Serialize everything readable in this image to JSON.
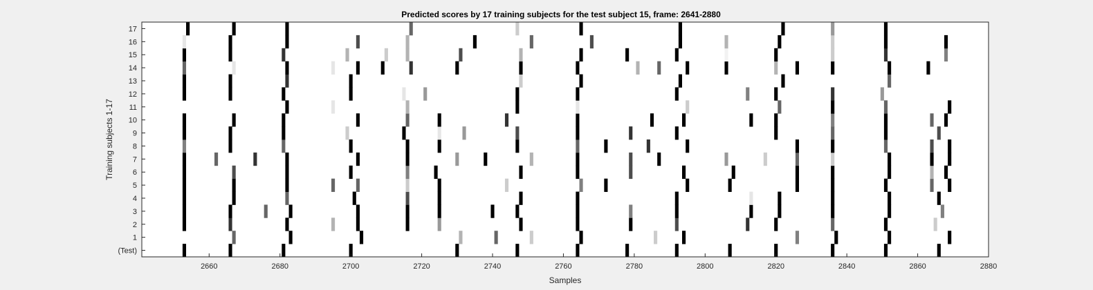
{
  "chart_data": {
    "type": "heatmap",
    "title": "Predicted scores by 17 training subjects for the test subject 15, frame: 2641-2880",
    "xlabel": "Samples",
    "ylabel": "Training subjects 1-17",
    "xlim": [
      2641,
      2880
    ],
    "xticks": [
      2660,
      2680,
      2700,
      2720,
      2740,
      2760,
      2780,
      2800,
      2820,
      2840,
      2860,
      2880
    ],
    "yticklabels": [
      "(Test)",
      "1",
      "2",
      "3",
      "4",
      "5",
      "6",
      "7",
      "8",
      "9",
      "10",
      "11",
      "12",
      "13",
      "14",
      "15",
      "16",
      "17"
    ],
    "grid": false,
    "colormap": "white-to-black",
    "rows": [
      {
        "row": "(Test)",
        "marks": [
          [
            2653,
            1
          ],
          [
            2666,
            1
          ],
          [
            2681,
            1
          ],
          [
            2700,
            1
          ],
          [
            2730,
            1
          ],
          [
            2747,
            1
          ],
          [
            2764,
            1
          ],
          [
            2778,
            1
          ],
          [
            2792,
            1
          ],
          [
            2807,
            1
          ],
          [
            2820,
            1
          ],
          [
            2836,
            1
          ],
          [
            2851,
            1
          ],
          [
            2866,
            1
          ]
        ]
      },
      {
        "row": "1",
        "marks": [
          [
            2667,
            0.6
          ],
          [
            2683,
            1
          ],
          [
            2703,
            1
          ],
          [
            2731,
            0.3
          ],
          [
            2741,
            0.6
          ],
          [
            2751,
            0.2
          ],
          [
            2765,
            1
          ],
          [
            2786,
            0.2
          ],
          [
            2794,
            1
          ],
          [
            2826,
            0.5
          ],
          [
            2837,
            1
          ],
          [
            2852,
            1
          ],
          [
            2869,
            1
          ]
        ]
      },
      {
        "row": "2",
        "marks": [
          [
            2653,
            1
          ],
          [
            2666,
            0.8
          ],
          [
            2682,
            1
          ],
          [
            2695,
            0.3
          ],
          [
            2702,
            1
          ],
          [
            2716,
            1
          ],
          [
            2725,
            0.4
          ],
          [
            2748,
            1
          ],
          [
            2764,
            1
          ],
          [
            2779,
            1
          ],
          [
            2792,
            0.7
          ],
          [
            2812,
            0.8
          ],
          [
            2820,
            1
          ],
          [
            2836,
            0.6
          ],
          [
            2851,
            1
          ],
          [
            2865,
            0.2
          ]
        ]
      },
      {
        "row": "3",
        "marks": [
          [
            2653,
            1
          ],
          [
            2666,
            1
          ],
          [
            2676,
            0.6
          ],
          [
            2683,
            1
          ],
          [
            2702,
            1
          ],
          [
            2716,
            1
          ],
          [
            2725,
            1
          ],
          [
            2740,
            1
          ],
          [
            2747,
            1
          ],
          [
            2764,
            1
          ],
          [
            2779,
            0.5
          ],
          [
            2792,
            1
          ],
          [
            2813,
            1
          ],
          [
            2821,
            1
          ],
          [
            2836,
            1
          ],
          [
            2852,
            1
          ],
          [
            2867,
            0.5
          ]
        ]
      },
      {
        "row": "4",
        "marks": [
          [
            2653,
            1
          ],
          [
            2667,
            1
          ],
          [
            2682,
            0.6
          ],
          [
            2701,
            1
          ],
          [
            2716,
            0.7
          ],
          [
            2725,
            1
          ],
          [
            2748,
            1
          ],
          [
            2764,
            1
          ],
          [
            2792,
            1
          ],
          [
            2813,
            0.1
          ],
          [
            2821,
            1
          ],
          [
            2836,
            1
          ],
          [
            2852,
            1
          ],
          [
            2866,
            1
          ]
        ]
      },
      {
        "row": "5",
        "marks": [
          [
            2653,
            1
          ],
          [
            2667,
            1
          ],
          [
            2682,
            1
          ],
          [
            2695,
            0.6
          ],
          [
            2702,
            0.6
          ],
          [
            2716,
            0.2
          ],
          [
            2725,
            1
          ],
          [
            2744,
            0.2
          ],
          [
            2765,
            0.5
          ],
          [
            2772,
            1
          ],
          [
            2795,
            1
          ],
          [
            2807,
            1
          ],
          [
            2826,
            1
          ],
          [
            2836,
            1
          ],
          [
            2851,
            1
          ],
          [
            2864,
            0.6
          ],
          [
            2869,
            1
          ]
        ]
      },
      {
        "row": "6",
        "marks": [
          [
            2653,
            1
          ],
          [
            2667,
            0.7
          ],
          [
            2682,
            1
          ],
          [
            2700,
            1
          ],
          [
            2716,
            0.5
          ],
          [
            2724,
            1
          ],
          [
            2748,
            1
          ],
          [
            2764,
            1
          ],
          [
            2779,
            0.7
          ],
          [
            2794,
            1
          ],
          [
            2808,
            1
          ],
          [
            2826,
            1
          ],
          [
            2836,
            1
          ],
          [
            2852,
            1
          ],
          [
            2864,
            0.3
          ],
          [
            2868,
            1
          ]
        ]
      },
      {
        "row": "7",
        "marks": [
          [
            2653,
            1
          ],
          [
            2662,
            0.6
          ],
          [
            2673,
            0.8
          ],
          [
            2682,
            1
          ],
          [
            2702,
            1
          ],
          [
            2716,
            1
          ],
          [
            2730,
            0.4
          ],
          [
            2738,
            1
          ],
          [
            2751,
            0.3
          ],
          [
            2764,
            1
          ],
          [
            2779,
            0.7
          ],
          [
            2787,
            1
          ],
          [
            2806,
            0.4
          ],
          [
            2817,
            0.2
          ],
          [
            2826,
            0.6
          ],
          [
            2836,
            0.2
          ],
          [
            2852,
            1
          ],
          [
            2864,
            1
          ],
          [
            2869,
            1
          ]
        ]
      },
      {
        "row": "8",
        "marks": [
          [
            2653,
            0.5
          ],
          [
            2666,
            1
          ],
          [
            2681,
            0.6
          ],
          [
            2700,
            1
          ],
          [
            2716,
            1
          ],
          [
            2725,
            1
          ],
          [
            2747,
            1
          ],
          [
            2764,
            0.6
          ],
          [
            2772,
            1
          ],
          [
            2784,
            0.8
          ],
          [
            2795,
            1
          ],
          [
            2826,
            1
          ],
          [
            2836,
            1
          ],
          [
            2851,
            0.6
          ],
          [
            2864,
            0.7
          ],
          [
            2869,
            1
          ]
        ]
      },
      {
        "row": "9",
        "marks": [
          [
            2653,
            1
          ],
          [
            2666,
            1
          ],
          [
            2681,
            1
          ],
          [
            2699,
            0.2
          ],
          [
            2715,
            1
          ],
          [
            2725,
            0.1
          ],
          [
            2732,
            0.4
          ],
          [
            2747,
            0.7
          ],
          [
            2764,
            1
          ],
          [
            2779,
            0.8
          ],
          [
            2792,
            1
          ],
          [
            2820,
            1
          ],
          [
            2836,
            0.6
          ],
          [
            2851,
            1
          ],
          [
            2866,
            0.7
          ]
        ]
      },
      {
        "row": "10",
        "marks": [
          [
            2653,
            1
          ],
          [
            2667,
            1
          ],
          [
            2681,
            1
          ],
          [
            2702,
            1
          ],
          [
            2716,
            0.6
          ],
          [
            2725,
            1
          ],
          [
            2744,
            0.8
          ],
          [
            2764,
            1
          ],
          [
            2785,
            1
          ],
          [
            2794,
            1
          ],
          [
            2813,
            1
          ],
          [
            2820,
            1
          ],
          [
            2836,
            0.5
          ],
          [
            2851,
            1
          ],
          [
            2864,
            0.6
          ],
          [
            2868,
            1
          ]
        ]
      },
      {
        "row": "11",
        "marks": [
          [
            2682,
            1
          ],
          [
            2695,
            0.1
          ],
          [
            2716,
            0.3
          ],
          [
            2747,
            1
          ],
          [
            2764,
            0.1
          ],
          [
            2795,
            0.2
          ],
          [
            2821,
            0.6
          ],
          [
            2836,
            1
          ],
          [
            2851,
            0.6
          ],
          [
            2869,
            1
          ]
        ]
      },
      {
        "row": "12",
        "marks": [
          [
            2653,
            1
          ],
          [
            2666,
            1
          ],
          [
            2681,
            1
          ],
          [
            2700,
            1
          ],
          [
            2715,
            0.1
          ],
          [
            2721,
            0.4
          ],
          [
            2747,
            1
          ],
          [
            2764,
            1
          ],
          [
            2792,
            1
          ],
          [
            2812,
            0.5
          ],
          [
            2820,
            1
          ],
          [
            2836,
            0.8
          ],
          [
            2850,
            0.4
          ]
        ]
      },
      {
        "row": "13",
        "marks": [
          [
            2653,
            1
          ],
          [
            2666,
            1
          ],
          [
            2682,
            0.8
          ],
          [
            2700,
            1
          ],
          [
            2748,
            0.2
          ],
          [
            2765,
            1
          ],
          [
            2793,
            1
          ],
          [
            2822,
            1
          ],
          [
            2852,
            0.6
          ]
        ]
      },
      {
        "row": "14",
        "marks": [
          [
            2653,
            0.6
          ],
          [
            2667,
            0.1
          ],
          [
            2682,
            1
          ],
          [
            2695,
            0.1
          ],
          [
            2702,
            1
          ],
          [
            2709,
            1
          ],
          [
            2717,
            0.8
          ],
          [
            2730,
            1
          ],
          [
            2748,
            1
          ],
          [
            2764,
            1
          ],
          [
            2781,
            0.3
          ],
          [
            2787,
            0.6
          ],
          [
            2795,
            1
          ],
          [
            2806,
            1
          ],
          [
            2820,
            0.3
          ],
          [
            2826,
            1
          ],
          [
            2836,
            1
          ],
          [
            2852,
            1
          ],
          [
            2863,
            1
          ]
        ]
      },
      {
        "row": "15",
        "marks": [
          [
            2653,
            1
          ],
          [
            2666,
            1
          ],
          [
            2681,
            0.8
          ],
          [
            2699,
            0.3
          ],
          [
            2710,
            0.2
          ],
          [
            2716,
            0.3
          ],
          [
            2731,
            0.7
          ],
          [
            2748,
            0.3
          ],
          [
            2765,
            1
          ],
          [
            2778,
            1
          ],
          [
            2792,
            1
          ],
          [
            2806,
            0.05
          ],
          [
            2820,
            1
          ],
          [
            2836,
            0.2
          ],
          [
            2851,
            0.8
          ],
          [
            2868,
            0.5
          ]
        ]
      },
      {
        "row": "16",
        "marks": [
          [
            2653,
            0.1
          ],
          [
            2666,
            1
          ],
          [
            2682,
            1
          ],
          [
            2702,
            0.7
          ],
          [
            2716,
            0.3
          ],
          [
            2735,
            1
          ],
          [
            2751,
            0.6
          ],
          [
            2768,
            0.7
          ],
          [
            2793,
            1
          ],
          [
            2806,
            0.3
          ],
          [
            2821,
            1
          ],
          [
            2836,
            0.2
          ],
          [
            2851,
            1
          ],
          [
            2868,
            1
          ]
        ]
      },
      {
        "row": "17",
        "marks": [
          [
            2654,
            1
          ],
          [
            2667,
            1
          ],
          [
            2682,
            1
          ],
          [
            2717,
            0.6
          ],
          [
            2747,
            0.2
          ],
          [
            2765,
            1
          ],
          [
            2793,
            1
          ],
          [
            2822,
            1
          ],
          [
            2836,
            0.4
          ],
          [
            2851,
            1
          ]
        ]
      }
    ]
  }
}
